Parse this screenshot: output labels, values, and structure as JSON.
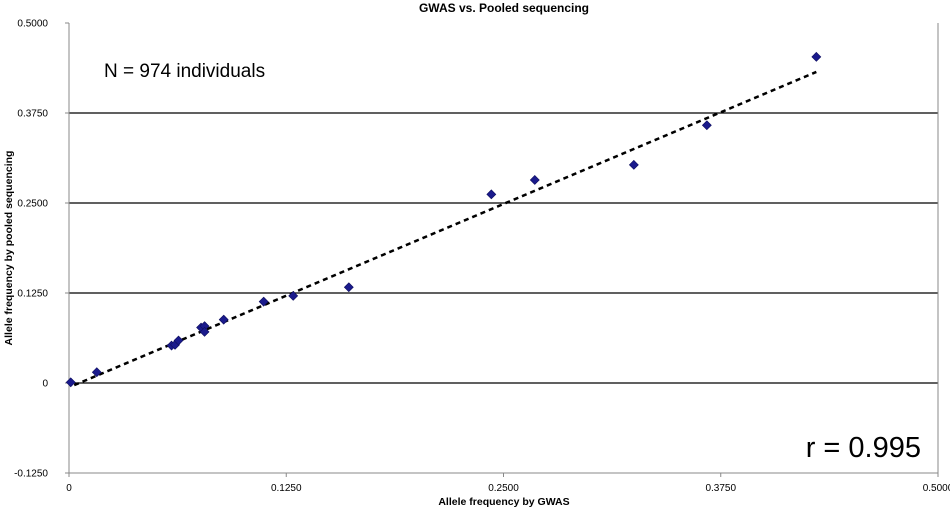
{
  "chart_data": {
    "type": "scatter",
    "title": "GWAS vs. Pooled sequencing",
    "xlabel": "Allele frequency by GWAS",
    "ylabel": "Allele frequency by pooled sequencing",
    "xlim": [
      0,
      0.5
    ],
    "ylim": [
      -0.125,
      0.5
    ],
    "x_ticks": [
      0,
      0.125,
      0.25,
      0.375,
      0.5
    ],
    "x_tick_labels": [
      "0",
      "0.1250",
      "0.2500",
      "0.3750",
      "0.5000"
    ],
    "y_ticks": [
      -0.125,
      0,
      0.125,
      0.25,
      0.375,
      0.5
    ],
    "y_tick_labels": [
      "-0.1250",
      "0",
      "0.1250",
      "0.2500",
      "0.3750",
      "0.5000"
    ],
    "grid": "horizontal",
    "marker_color": "#1a1a8c",
    "trendline": {
      "style": "dashed",
      "x_range": [
        0.003,
        0.43
      ],
      "y_range": [
        -0.003,
        0.432
      ]
    },
    "annotations": [
      {
        "name": "n-annotation",
        "text": "N = 974 individuals"
      },
      {
        "name": "r-annotation",
        "text": "r = 0.995"
      }
    ],
    "points": [
      {
        "x": 0.001,
        "y": 0.001
      },
      {
        "x": 0.016,
        "y": 0.015
      },
      {
        "x": 0.059,
        "y": 0.052
      },
      {
        "x": 0.061,
        "y": 0.053
      },
      {
        "x": 0.063,
        "y": 0.059
      },
      {
        "x": 0.076,
        "y": 0.077
      },
      {
        "x": 0.078,
        "y": 0.079
      },
      {
        "x": 0.078,
        "y": 0.071
      },
      {
        "x": 0.089,
        "y": 0.088
      },
      {
        "x": 0.112,
        "y": 0.113
      },
      {
        "x": 0.129,
        "y": 0.121
      },
      {
        "x": 0.161,
        "y": 0.133
      },
      {
        "x": 0.243,
        "y": 0.262
      },
      {
        "x": 0.268,
        "y": 0.282
      },
      {
        "x": 0.325,
        "y": 0.303
      },
      {
        "x": 0.367,
        "y": 0.358
      },
      {
        "x": 0.43,
        "y": 0.453
      }
    ]
  }
}
